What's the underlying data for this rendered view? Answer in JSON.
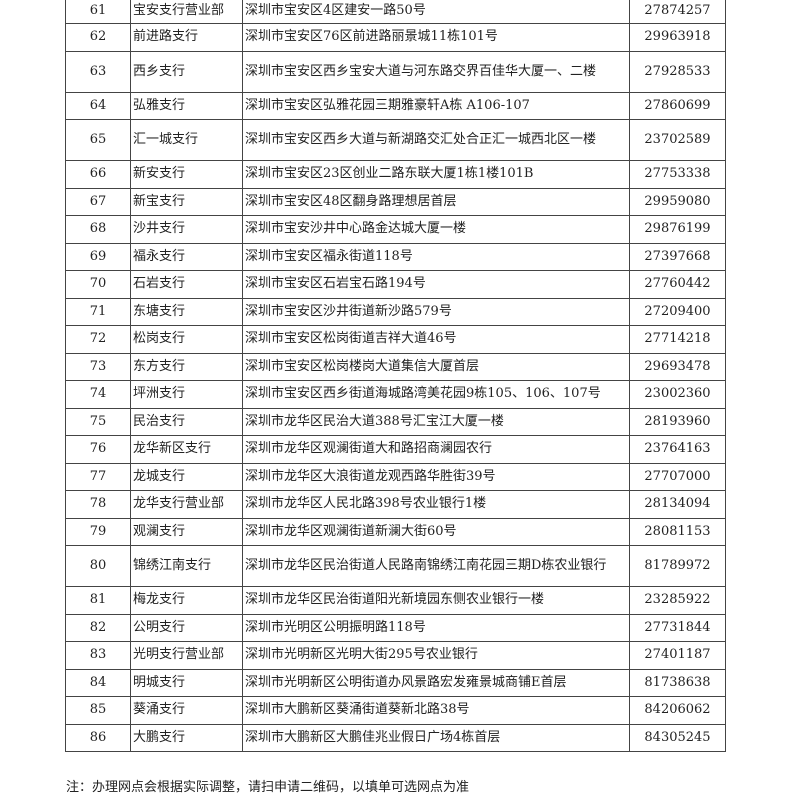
{
  "rows": [
    {
      "no": "61",
      "name": "宝安支行营业部",
      "address": "深圳市宝安区4区建安一路50号",
      "phone": "27874257"
    },
    {
      "no": "62",
      "name": "前进路支行",
      "address": "深圳市宝安区76区前进路丽景城11栋101号",
      "phone": "29963918"
    },
    {
      "no": "63",
      "name": "西乡支行",
      "address": "深圳市宝安区西乡宝安大道与河东路交界百佳华大厦一、二楼",
      "phone": "27928533"
    },
    {
      "no": "64",
      "name": "弘雅支行",
      "address": "深圳市宝安区弘雅花园三期雅豪轩A栋 A106-107",
      "phone": "27860699"
    },
    {
      "no": "65",
      "name": "汇一城支行",
      "address": "深圳市宝安区西乡大道与新湖路交汇处合正汇一城西北区一楼",
      "phone": "23702589"
    },
    {
      "no": "66",
      "name": "新安支行",
      "address": "深圳市宝安区23区创业二路东联大厦1栋1楼101B",
      "phone": "27753338"
    },
    {
      "no": "67",
      "name": "新宝支行",
      "address": "深圳市宝安区48区翻身路理想居首层",
      "phone": "29959080"
    },
    {
      "no": "68",
      "name": "沙井支行",
      "address": "深圳市宝安沙井中心路金达城大厦一楼",
      "phone": "29876199"
    },
    {
      "no": "69",
      "name": "福永支行",
      "address": "深圳市宝安区福永街道118号",
      "phone": "27397668"
    },
    {
      "no": "70",
      "name": "石岩支行",
      "address": "深圳市宝安区石岩宝石路194号",
      "phone": "27760442"
    },
    {
      "no": "71",
      "name": "东塘支行",
      "address": "深圳市宝安区沙井街道新沙路579号",
      "phone": "27209400"
    },
    {
      "no": "72",
      "name": "松岗支行",
      "address": "深圳市宝安区松岗街道吉祥大道46号",
      "phone": "27714218"
    },
    {
      "no": "73",
      "name": "东方支行",
      "address": "深圳市宝安区松岗楼岗大道集信大厦首层",
      "phone": "29693478"
    },
    {
      "no": "74",
      "name": "坪洲支行",
      "address": "深圳市宝安区西乡街道海城路湾美花园9栋105、106、107号",
      "phone": "23002360"
    },
    {
      "no": "75",
      "name": "民治支行",
      "address": "深圳市龙华区民治大道388号汇宝江大厦一楼",
      "phone": "28193960"
    },
    {
      "no": "76",
      "name": "龙华新区支行",
      "address": "深圳市龙华区观澜街道大和路招商澜园农行",
      "phone": "23764163"
    },
    {
      "no": "77",
      "name": "龙城支行",
      "address": "深圳市龙华区大浪街道龙观西路华胜街39号",
      "phone": "27707000"
    },
    {
      "no": "78",
      "name": "龙华支行营业部",
      "address": "深圳市龙华区人民北路398号农业银行1楼",
      "phone": "28134094"
    },
    {
      "no": "79",
      "name": "观澜支行",
      "address": "深圳市龙华区观澜街道新澜大街60号",
      "phone": "28081153"
    },
    {
      "no": "80",
      "name": "锦绣江南支行",
      "address": "深圳市龙华区民治街道人民路南锦绣江南花园三期D栋农业银行",
      "phone": "81789972"
    },
    {
      "no": "81",
      "name": "梅龙支行",
      "address": "深圳市龙华区民治街道阳光新境园东侧农业银行一楼",
      "phone": "23285922"
    },
    {
      "no": "82",
      "name": "公明支行",
      "address": "深圳市光明区公明振明路118号",
      "phone": "27731844"
    },
    {
      "no": "83",
      "name": "光明支行营业部",
      "address": "深圳市光明新区光明大街295号农业银行",
      "phone": "27401187"
    },
    {
      "no": "84",
      "name": "明城支行",
      "address": "深圳市光明新区公明街道办风景路宏发雍景城商铺E首层",
      "phone": "81738638"
    },
    {
      "no": "85",
      "name": "葵涌支行",
      "address": "深圳市大鹏新区葵涌街道葵新北路38号",
      "phone": "84206062"
    },
    {
      "no": "86",
      "name": "大鹏支行",
      "address": "深圳市大鹏新区大鹏佳兆业假日广场4栋首层",
      "phone": "84305245"
    }
  ],
  "note": "注：办理网点会根据实际调整，请扫申请二维码，以填单可选网点为准"
}
